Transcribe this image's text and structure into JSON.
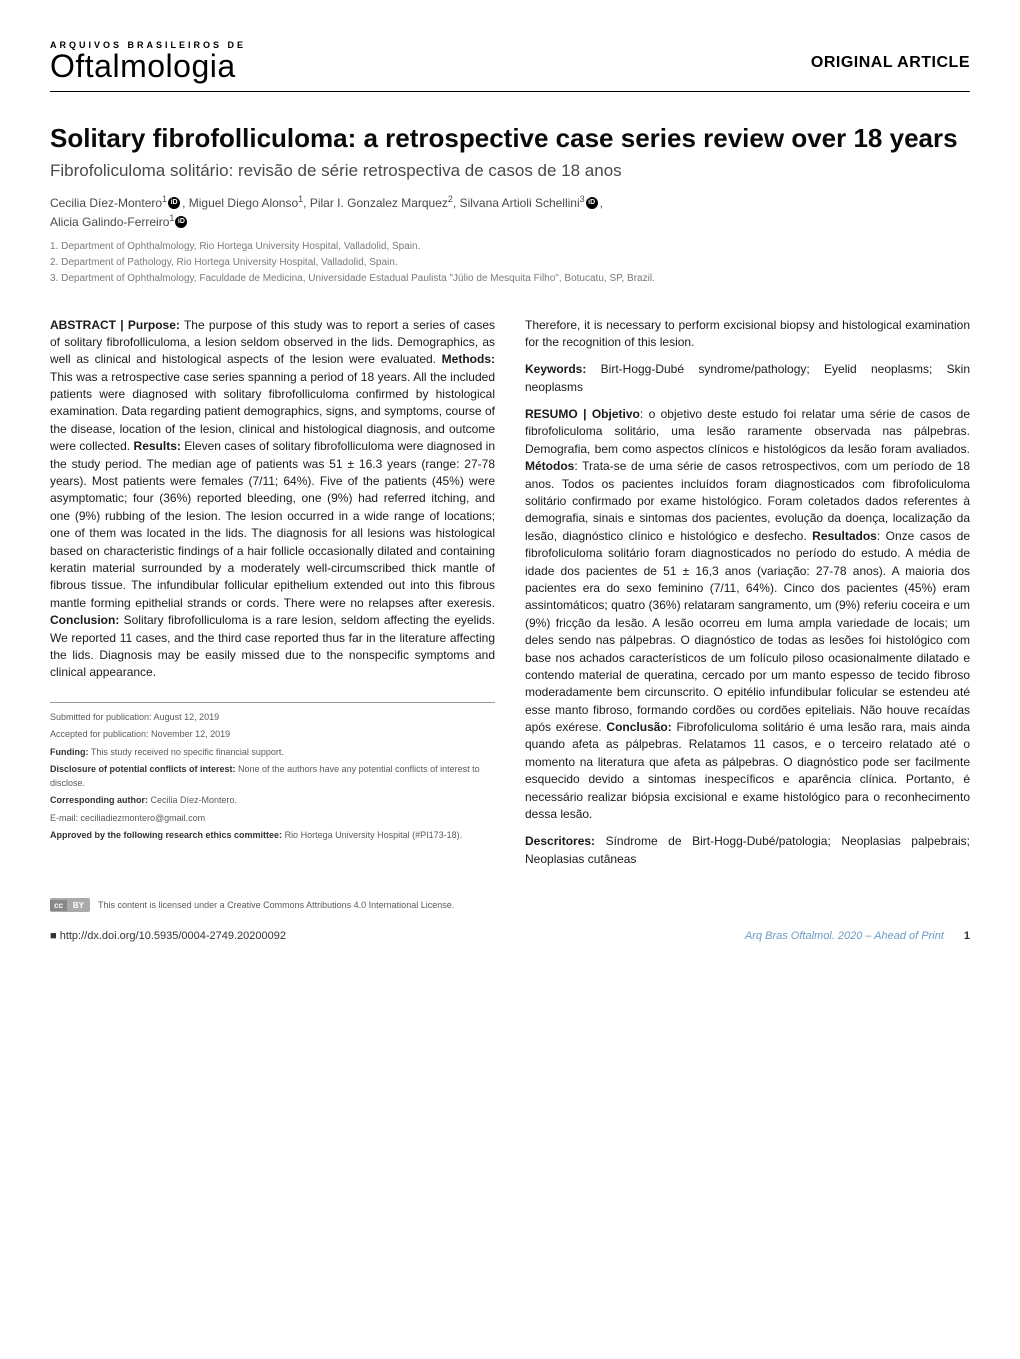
{
  "header": {
    "journal_pre": "Arquivos Brasileiros de",
    "journal_main": "Oftalmologia",
    "article_type": "ORIGINAL ARTICLE"
  },
  "title": {
    "en": "Solitary fibrofolliculoma: a retrospective case series review over 18 years",
    "pt": "Fibrofoliculoma solitário: revisão de série retrospectiva de casos de 18 anos"
  },
  "authors_line1": "Cecilia Díez-Montero",
  "authors_sup1": "1",
  "authors_mid1": ", Miguel Diego Alonso",
  "authors_sup2": "1",
  "authors_mid2": ", Pilar I. Gonzalez Marquez",
  "authors_sup3": "2",
  "authors_mid3": ", Silvana Artioli Schellini",
  "authors_sup4": "3",
  "authors_end": ",",
  "authors_line2": "Alicia Galindo-Ferreiro",
  "authors_sup5": "1",
  "affiliations": {
    "a1": "1. Department of Ophthalmology, Rio Hortega University Hospital, Valladolid, Spain.",
    "a2": "2. Department of Pathology, Rio Hortega University Hospital, Valladolid, Spain.",
    "a3": "3. Department of Ophthalmology, Faculdade de Medicina, Universidade Estadual Paulista \"Júlio de Mesquita Filho\", Botucatu, SP, Brazil."
  },
  "abstract_en": {
    "label": "ABSTRACT | ",
    "purpose_label": "Purpose:",
    "purpose": " The purpose of this study was to report a series of cases of solitary fibrofolliculoma, a lesion seldom observed in the lids. Demographics, as well as clinical and histological aspects of the lesion were evaluated. ",
    "methods_label": "Methods:",
    "methods": " This was a retrospective case series spanning a period of 18 years. All the included patients were diagnosed with solitary fibrofolliculoma confirmed by histological examination. Data regarding patient demographics, signs, and symptoms, course of the disease, location of the lesion, clinical and histological diagnosis, and outcome were collected. ",
    "results_label": "Results:",
    "results": " Eleven cases of solitary fibrofolliculoma were diagnosed in the study period. The median age of patients was 51 ± 16.3 years (range: 27-78 years). Most patients were females (7/11; 64%). Five of the patients (45%) were asymptomatic; four (36%) reported bleeding, one (9%) had referred itching, and one (9%) rubbing of the lesion. The lesion occurred in a wide range of locations; one of them was located in the lids. The diagnosis for all lesions was histological based on characteristic findings of a hair follicle occasionally dilated and containing keratin material surrounded by a moderately well-circumscribed thick mantle of fibrous tissue. The infundibular follicular epithelium extended out into this fibrous mantle forming epithelial strands or cords. There were no relapses after exeresis. ",
    "conclusion_label": "Conclusion:",
    "conclusion": " Solitary fibrofolliculoma is a rare lesion, seldom affecting the eyelids. We reported 11 cases, and the third case reported thus far in the literature affecting the lids. Diagnosis may be easily missed due to the nonspecific symptoms and clinical appearance. "
  },
  "abstract_en_cont": "Therefore, it is necessary to perform excisional biopsy and histological examination for the recognition of this lesion.",
  "keywords_en": {
    "label": "Keywords:",
    "text": " Birt-Hogg-Dubé syndrome/pathology; Eyelid neoplasms; Skin neoplasms"
  },
  "abstract_pt": {
    "label": "RESUMO | ",
    "objetivo_label": "Objetivo",
    "objetivo": ": o objetivo deste estudo foi relatar uma série de casos de fibrofoliculoma solitário, uma lesão raramente observada nas pálpebras. Demografia, bem como aspectos clínicos e histológicos da lesão foram avaliados. ",
    "metodos_label": "Métodos",
    "metodos": ": Trata-se de uma série de casos retrospectivos, com um período de 18 anos. Todos os pacientes incluídos foram diagnosticados com fibrofoliculoma solitário confirmado por exame histológico. Foram coletados dados referentes à demografia, sinais e sintomas dos pacientes, evolução da doença, localização da lesão, diagnóstico clínico e histológico e desfecho. ",
    "resultados_label": "Resultados",
    "resultados": ": Onze casos de fibrofoliculoma solitário foram diagnosticados no período do estudo. A média de idade dos pacientes de 51 ± 16,3 anos (variação: 27-78 anos). A maioria dos pacientes era do sexo feminino (7/11, 64%). Cinco dos pacientes (45%) eram assintomáticos; quatro (36%) relataram sangramento, um (9%) referiu coceira e um (9%) fricção da lesão. A lesão ocorreu em luma ampla variedade de locais; um deles sendo nas pálpebras. O diagnóstico de todas as lesões foi histológico com base nos achados característicos de um folículo piloso ocasionalmente dilatado e contendo material de queratina, cercado por um manto espesso de tecido fibroso moderadamente bem circunscrito. O epitélio infundibular folicular se estendeu até esse manto fibroso, formando cordões ou cordões epiteliais. Não houve recaídas após exérese. ",
    "conclusao_label": "Conclusão:",
    "conclusao": " Fibrofoliculoma solitário é uma lesão rara, mais ainda quando afeta as pálpebras. Relatamos 11 casos, e o terceiro relatado até o momento na literatura que afeta as pálpebras. O diagnóstico pode ser facilmente esquecido devido a sintomas inespecíficos e aparência clínica. Portanto, é necessário realizar biópsia excisional e exame histológico para o reconhecimento dessa lesão."
  },
  "keywords_pt": {
    "label": "Descritores:",
    "text": " Síndrome de Birt-Hogg-Dubé/patologia; Neoplasias palpebrais; Neoplasias cutâneas"
  },
  "meta": {
    "submitted": "Submitted for publication: August 12, 2019",
    "accepted": "Accepted for publication: November 12, 2019",
    "funding_label": "Funding:",
    "funding": " This study received no specific financial support.",
    "disclosure_label": "Disclosure of potential conflicts of interest:",
    "disclosure": " None of the authors have any potential conflicts of interest to disclose.",
    "corr_label": "Corresponding author:",
    "corr": " Cecilia Díez-Montero.",
    "email": "E-mail: ceciliadiezmontero@gmail.com",
    "ethics_label": "Approved by the following research ethics committee:",
    "ethics": " Rio Hortega University Hospital (#PI173-18)."
  },
  "cc": {
    "cc": "cc",
    "by": "BY",
    "text": "This content is licensed under a Creative Commons Attributions 4.0 International License."
  },
  "footer": {
    "doi_prefix": "■ ",
    "doi": "http://dx.doi.org/10.5935/0004-2749.20200092",
    "journal_ref": "Arq Bras Oftalmol. 2020 – Ahead of Print",
    "page": "1"
  }
}
